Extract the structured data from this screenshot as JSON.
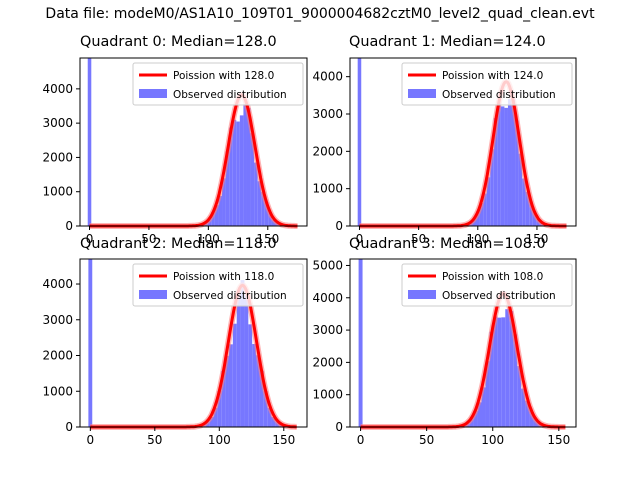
{
  "suptitle": "Data file: modeM0/AS1A10_109T01_9000004682cztM0_level2_quad_clean.evt",
  "colors": {
    "hist": "#7777ff",
    "curve": "#ff0000"
  },
  "chart_data": [
    {
      "type": "bar",
      "title": "Quadrant 0: Median=128.0",
      "median": 128,
      "xlim": [
        -8,
        183
      ],
      "ylim": [
        0,
        4900
      ],
      "xticks": [
        0,
        50,
        100,
        150
      ],
      "yticks": [
        0,
        1000,
        2000,
        3000,
        4000
      ],
      "zero_bin_count": 4900,
      "legend": [
        "Poission with 128.0",
        "Observed distribution"
      ],
      "series": [
        {
          "name": "Poission with 128.0",
          "peak": 3540
        }
      ]
    },
    {
      "type": "bar",
      "title": "Quadrant 1: Median=124.0",
      "median": 124,
      "xlim": [
        -8,
        183
      ],
      "ylim": [
        0,
        4500
      ],
      "xticks": [
        0,
        50,
        100,
        150
      ],
      "yticks": [
        0,
        1000,
        2000,
        3000,
        4000
      ],
      "zero_bin_count": 4500,
      "legend": [
        "Poission with 124.0",
        "Observed distribution"
      ],
      "series": [
        {
          "name": "Poission with 124.0",
          "peak": 3580
        }
      ]
    },
    {
      "type": "bar",
      "title": "Quadrant 2: Median=118.0",
      "median": 118,
      "xlim": [
        -8,
        168
      ],
      "ylim": [
        0,
        4700
      ],
      "xticks": [
        0,
        50,
        100,
        150
      ],
      "yticks": [
        0,
        1000,
        2000,
        3000,
        4000
      ],
      "zero_bin_count": 4700,
      "legend": [
        "Poission with 118.0",
        "Observed distribution"
      ],
      "series": [
        {
          "name": "Poission with 118.0",
          "peak": 3670
        }
      ]
    },
    {
      "type": "bar",
      "title": "Quadrant 3: Median=108.0",
      "median": 108,
      "xlim": [
        -8,
        163
      ],
      "ylim": [
        0,
        5200
      ],
      "xticks": [
        0,
        50,
        100,
        150
      ],
      "yticks": [
        0,
        1000,
        2000,
        3000,
        4000,
        5000
      ],
      "zero_bin_count": 5200,
      "legend": [
        "Poission with 108.0",
        "Observed distribution"
      ],
      "series": [
        {
          "name": "Poission with 108.0",
          "peak": 3830
        }
      ]
    }
  ]
}
